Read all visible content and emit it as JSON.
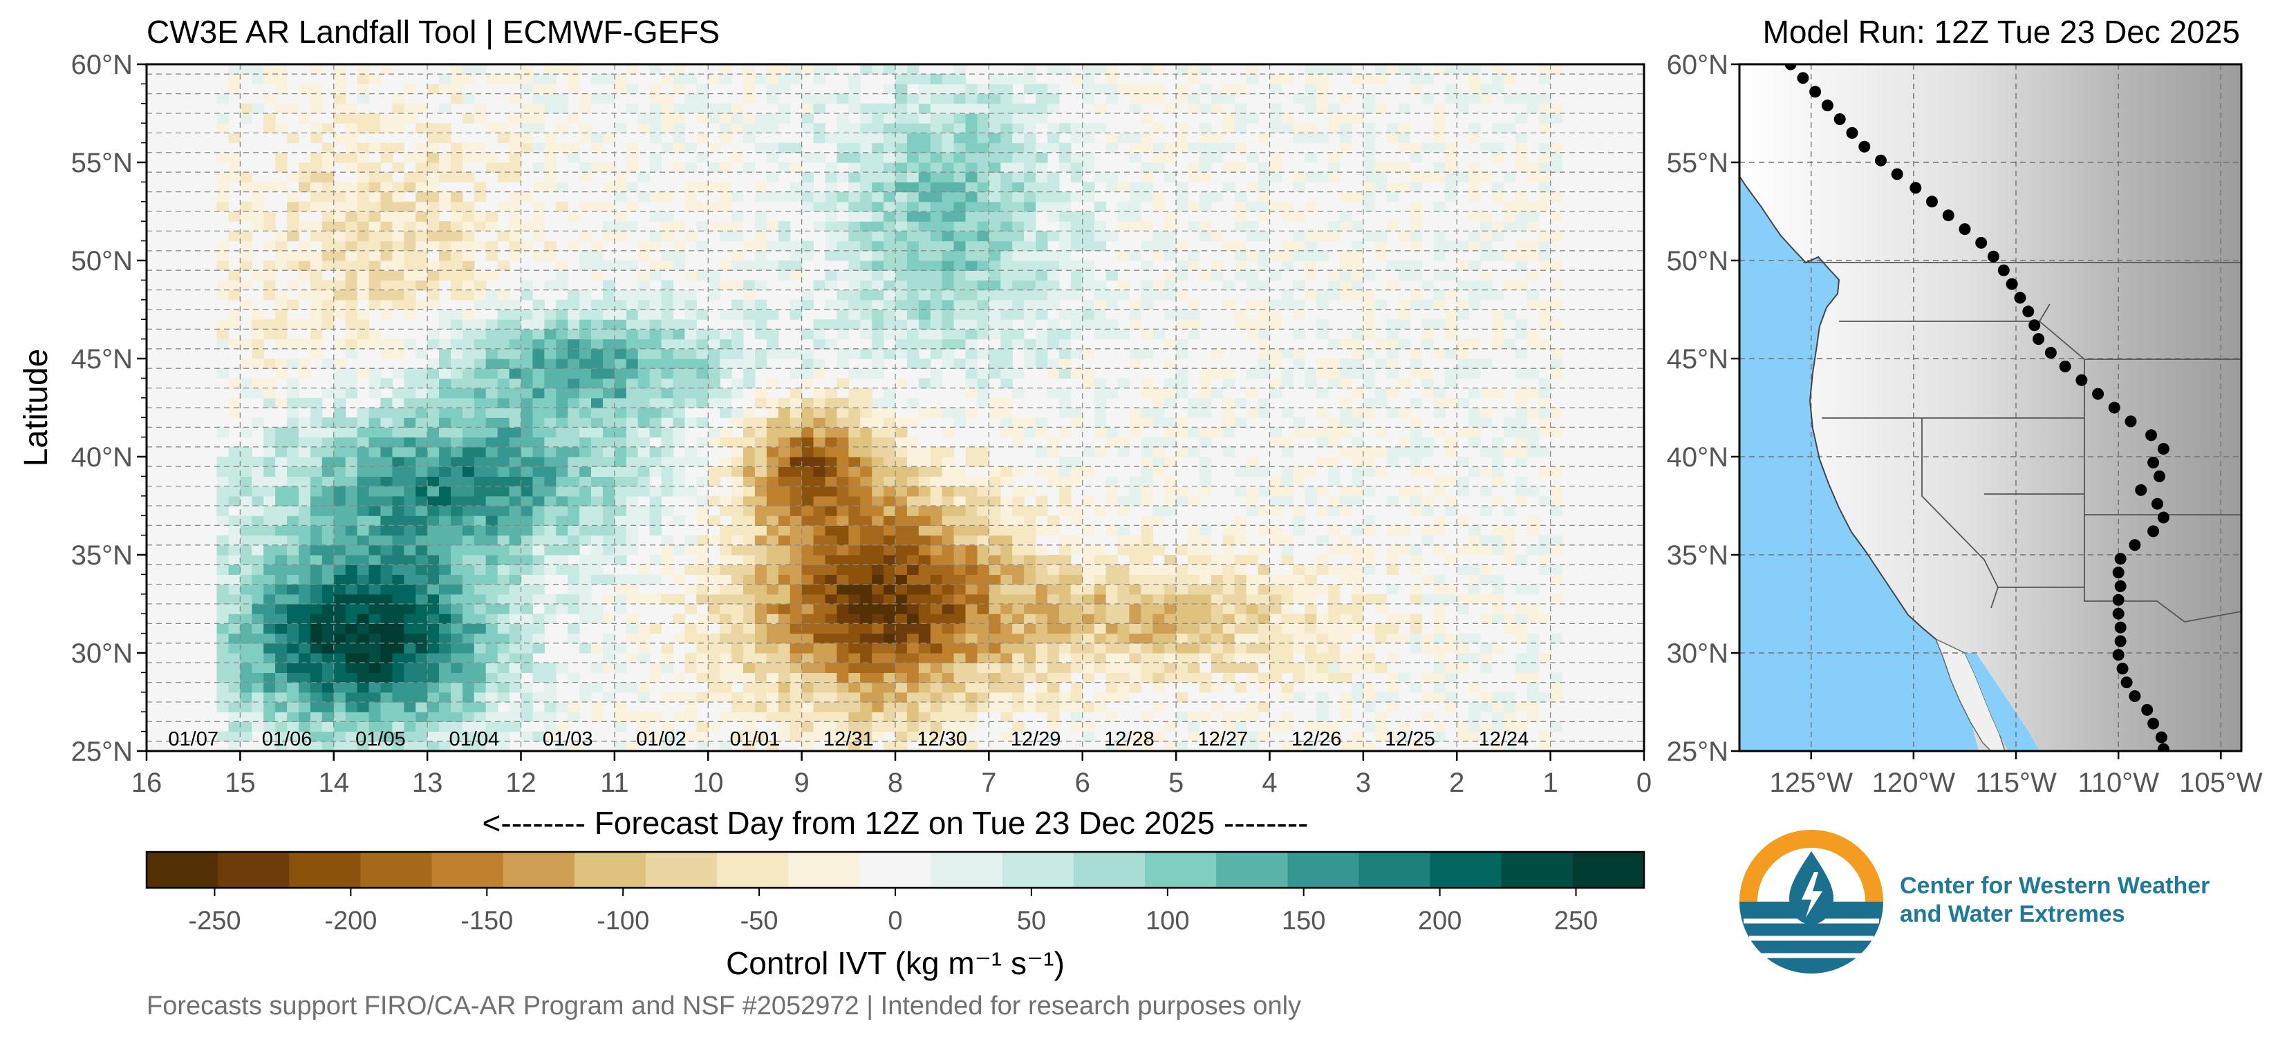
{
  "header": {
    "title": "CW3E AR Landfall Tool | ECMWF-GEFS",
    "model_run": "Model Run: 12Z Tue 23 Dec 2025"
  },
  "chart_data": {
    "type": "heatmap",
    "title": "CW3E AR Landfall Tool | ECMWF-GEFS",
    "xlabel": "<-------- Forecast Day from 12Z on Tue 23 Dec 2025 --------",
    "ylabel": "Latitude",
    "xlim": [
      16,
      0
    ],
    "ylim": [
      25,
      60
    ],
    "x_ticks": [
      16,
      15,
      14,
      13,
      12,
      11,
      10,
      9,
      8,
      7,
      6,
      5,
      4,
      3,
      2,
      1,
      0
    ],
    "y_ticks": [
      {
        "value": 25,
        "label": "25°N"
      },
      {
        "value": 30,
        "label": "30°N"
      },
      {
        "value": 35,
        "label": "35°N"
      },
      {
        "value": 40,
        "label": "40°N"
      },
      {
        "value": 45,
        "label": "45°N"
      },
      {
        "value": 50,
        "label": "50°N"
      },
      {
        "value": 55,
        "label": "55°N"
      },
      {
        "value": 60,
        "label": "60°N"
      }
    ],
    "date_labels": [
      {
        "day": 15,
        "label": "01/07"
      },
      {
        "day": 14,
        "label": "01/06"
      },
      {
        "day": 13,
        "label": "01/05"
      },
      {
        "day": 12,
        "label": "01/04"
      },
      {
        "day": 11,
        "label": "01/03"
      },
      {
        "day": 10,
        "label": "01/02"
      },
      {
        "day": 9,
        "label": "01/01"
      },
      {
        "day": 8,
        "label": "12/31"
      },
      {
        "day": 7,
        "label": "12/30"
      },
      {
        "day": 6,
        "label": "12/29"
      },
      {
        "day": 5,
        "label": "12/28"
      },
      {
        "day": 4,
        "label": "12/27"
      },
      {
        "day": 3,
        "label": "12/26"
      },
      {
        "day": 2,
        "label": "12/25"
      },
      {
        "day": 1,
        "label": "12/24"
      }
    ],
    "anomaly_features": [
      {
        "name": "strong positive IVT core",
        "day_range": [
          15,
          12.5
        ],
        "lat_range": [
          26,
          35
        ],
        "ivt": 260
      },
      {
        "name": "positive IVT band",
        "day_range": [
          14.5,
          11
        ],
        "lat_range": [
          35,
          42
        ],
        "ivt": 170
      },
      {
        "name": "positive IVT band north",
        "day_range": [
          13,
          10
        ],
        "lat_range": [
          42,
          47
        ],
        "ivt": 140
      },
      {
        "name": "positive IVT patches",
        "day_range": [
          8.5,
          6.5
        ],
        "lat_range": [
          45,
          59
        ],
        "ivt": 110
      },
      {
        "name": "strong negative IVT core",
        "day_range": [
          9.5,
          7
        ],
        "lat_range": [
          27,
          38
        ],
        "ivt": -240
      },
      {
        "name": "negative IVT band",
        "day_range": [
          9.5,
          8.5
        ],
        "lat_range": [
          37,
          42
        ],
        "ivt": -170
      },
      {
        "name": "negative IVT streak",
        "day_range": [
          7,
          3.5
        ],
        "lat_range": [
          29,
          34
        ],
        "ivt": -100
      },
      {
        "name": "weak negative IVT north",
        "day_range": [
          15,
          12
        ],
        "lat_range": [
          44,
          57
        ],
        "ivt": -60
      }
    ],
    "colorbar": {
      "label": "Control IVT (kg m⁻¹ s⁻¹)",
      "tick_labels": [
        "-250",
        "-200",
        "-150",
        "-100",
        "-50",
        "0",
        "50",
        "100",
        "150",
        "200",
        "250"
      ],
      "tick_values": [
        -250,
        -200,
        -150,
        -100,
        -50,
        0,
        50,
        100,
        150,
        200,
        250
      ],
      "vmin": -275,
      "vmax": 275,
      "colors": [
        "#543005",
        "#6e3c0b",
        "#8c510a",
        "#a6681a",
        "#bf812d",
        "#cf9f53",
        "#dfc27d",
        "#ebd5a3",
        "#f6e8c3",
        "#fbf2de",
        "#f5f5f5",
        "#e3f2ef",
        "#c7eae5",
        "#a8ddd4",
        "#80cdc1",
        "#5ab4a9",
        "#35978f",
        "#1d8179",
        "#01665e",
        "#014d44",
        "#003c30"
      ]
    }
  },
  "map": {
    "lon_ticks": [
      "125°W",
      "120°W",
      "115°W",
      "110°W",
      "105°W"
    ],
    "lat_ticks": [
      "25°N",
      "30°N",
      "35°N",
      "40°N",
      "45°N",
      "50°N",
      "55°N",
      "60°N"
    ],
    "landfall_points": [
      {
        "lat": 60,
        "lon": -126
      },
      {
        "lat": 59.3,
        "lon": -125.4
      },
      {
        "lat": 58.6,
        "lon": -124.8
      },
      {
        "lat": 57.9,
        "lon": -124.2
      },
      {
        "lat": 57.2,
        "lon": -123.6
      },
      {
        "lat": 56.5,
        "lon": -123
      },
      {
        "lat": 55.8,
        "lon": -122.4
      },
      {
        "lat": 55.1,
        "lon": -121.6
      },
      {
        "lat": 54.4,
        "lon": -120.8
      },
      {
        "lat": 53.7,
        "lon": -119.9
      },
      {
        "lat": 53.0,
        "lon": -119.1
      },
      {
        "lat": 52.3,
        "lon": -118.3
      },
      {
        "lat": 51.6,
        "lon": -117.5
      },
      {
        "lat": 50.9,
        "lon": -116.7
      },
      {
        "lat": 50.2,
        "lon": -116.1
      },
      {
        "lat": 49.5,
        "lon": -115.6
      },
      {
        "lat": 48.8,
        "lon": -115.2
      },
      {
        "lat": 48.1,
        "lon": -114.8
      },
      {
        "lat": 47.4,
        "lon": -114.4
      },
      {
        "lat": 46.7,
        "lon": -114.1
      },
      {
        "lat": 46.0,
        "lon": -113.9
      },
      {
        "lat": 45.3,
        "lon": -113.3
      },
      {
        "lat": 44.6,
        "lon": -112.6
      },
      {
        "lat": 43.9,
        "lon": -111.8
      },
      {
        "lat": 43.2,
        "lon": -111.0
      },
      {
        "lat": 42.5,
        "lon": -110.2
      },
      {
        "lat": 41.8,
        "lon": -109.4
      },
      {
        "lat": 41.1,
        "lon": -108.4
      },
      {
        "lat": 40.4,
        "lon": -107.8
      },
      {
        "lat": 39.7,
        "lon": -108.3
      },
      {
        "lat": 39.0,
        "lon": -108.0
      },
      {
        "lat": 38.3,
        "lon": -108.9
      },
      {
        "lat": 37.6,
        "lon": -108.1
      },
      {
        "lat": 36.9,
        "lon": -107.8
      },
      {
        "lat": 36.2,
        "lon": -108.3
      },
      {
        "lat": 35.5,
        "lon": -109.2
      },
      {
        "lat": 34.8,
        "lon": -109.9
      },
      {
        "lat": 34.1,
        "lon": -110.0
      },
      {
        "lat": 33.4,
        "lon": -109.9
      },
      {
        "lat": 32.7,
        "lon": -110.0
      },
      {
        "lat": 32.0,
        "lon": -110.0
      },
      {
        "lat": 31.3,
        "lon": -109.9
      },
      {
        "lat": 30.6,
        "lon": -109.9
      },
      {
        "lat": 29.9,
        "lon": -110.0
      },
      {
        "lat": 29.2,
        "lon": -109.8
      },
      {
        "lat": 28.5,
        "lon": -109.6
      },
      {
        "lat": 27.8,
        "lon": -109.2
      },
      {
        "lat": 27.1,
        "lon": -108.6
      },
      {
        "lat": 26.4,
        "lon": -108.3
      },
      {
        "lat": 25.7,
        "lon": -107.9
      },
      {
        "lat": 25.1,
        "lon": -107.8
      }
    ]
  },
  "logo": {
    "line1": "Center for Western Weather",
    "line2": "and Water Extremes"
  },
  "footer": {
    "text": "Forecasts support FIRO/CA-AR Program and NSF #2052972 | Intended for research purposes only"
  },
  "colors": {
    "ocean": "#87cefa",
    "logo_orange": "#f39c1f",
    "logo_teal": "#1b6f8f",
    "logo_text": "#1f7a9a"
  }
}
